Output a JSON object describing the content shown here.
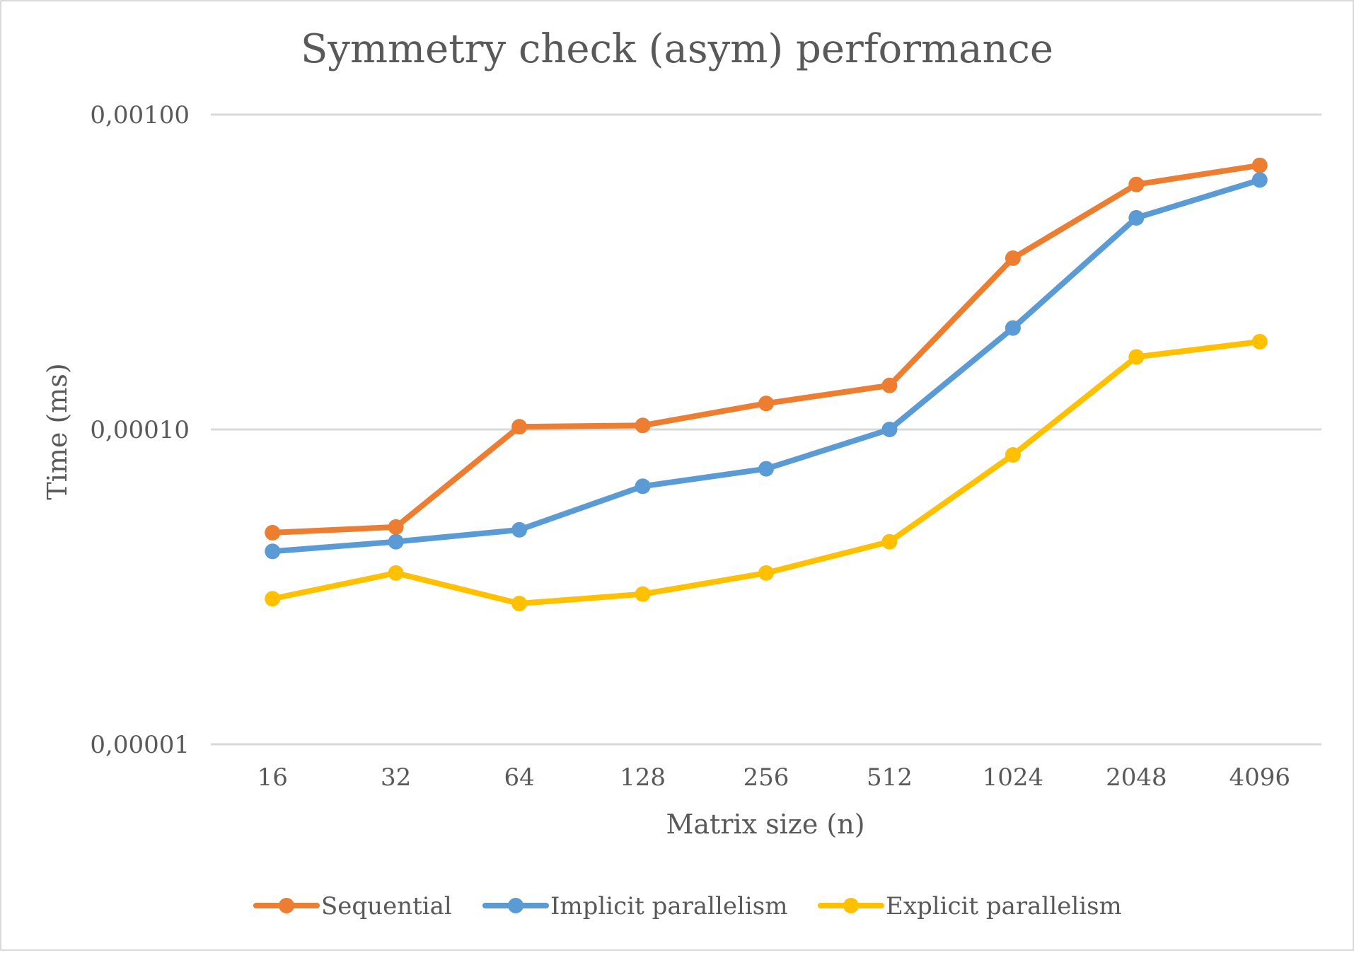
{
  "chart_data": {
    "type": "line",
    "title": "Symmetry check (asym) performance",
    "xlabel": "Matrix size (n)",
    "ylabel": "Time (ms)",
    "y_scale": "log",
    "ylim": [
      1e-05,
      0.001
    ],
    "y_ticks": [
      0.001,
      0.0001,
      1e-05
    ],
    "y_tick_labels": [
      "0,00100",
      "0,00010",
      "0,00001"
    ],
    "categories": [
      "16",
      "32",
      "64",
      "128",
      "256",
      "512",
      "1024",
      "2048",
      "4096"
    ],
    "grid": true,
    "legend_position": "bottom",
    "series": [
      {
        "name": "Sequential",
        "color": "#ED7D31",
        "values": [
          4.7e-05,
          4.9e-05,
          0.000102,
          0.000103,
          0.000121,
          0.000138,
          0.00035,
          0.0006,
          0.00069
        ]
      },
      {
        "name": "Implicit parallelism",
        "color": "#5B9BD5",
        "values": [
          4.1e-05,
          4.4e-05,
          4.8e-05,
          6.6e-05,
          7.5e-05,
          0.0001,
          0.00021,
          0.00047,
          0.00062
        ]
      },
      {
        "name": "Explicit parallelism",
        "color": "#FFC000",
        "values": [
          2.9e-05,
          3.5e-05,
          2.8e-05,
          3e-05,
          3.5e-05,
          4.4e-05,
          8.3e-05,
          0.00017,
          0.00019
        ]
      }
    ]
  }
}
